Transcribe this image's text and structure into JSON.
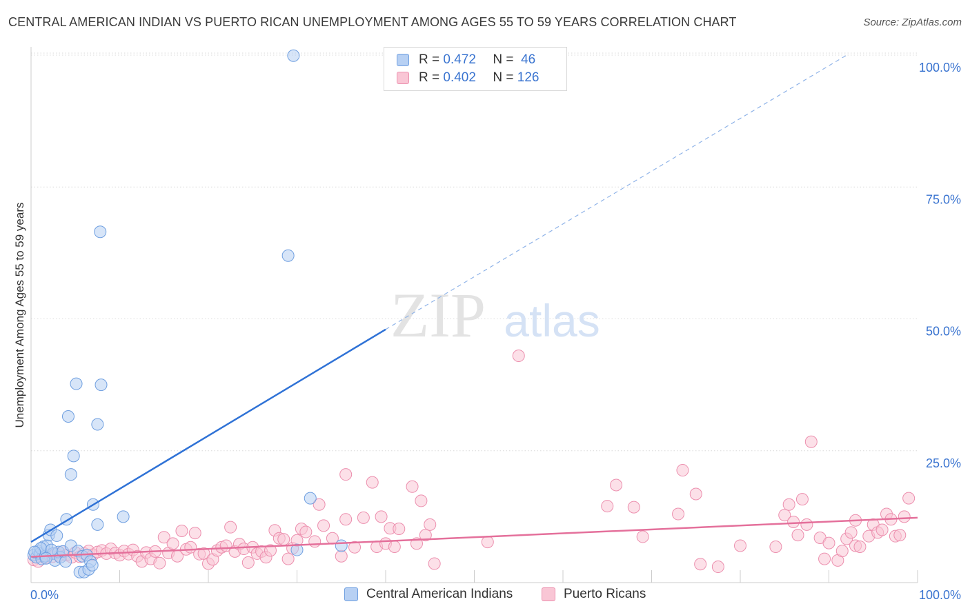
{
  "title": "CENTRAL AMERICAN INDIAN VS PUERTO RICAN UNEMPLOYMENT AMONG AGES 55 TO 59 YEARS CORRELATION CHART",
  "source": "Source: ZipAtlas.com",
  "watermark": {
    "zip": "ZIP",
    "atlas": "atlas"
  },
  "legend": {
    "r_label": "R =",
    "n_label": "N =",
    "series": [
      {
        "name": "Central American Indians",
        "r": "0.472",
        "n": "46",
        "color": "#6f9fe0",
        "fill": "#b7d0f3"
      },
      {
        "name": "Puerto Ricans",
        "r": "0.402",
        "n": "126",
        "color": "#ec8fae",
        "fill": "#f9c6d5"
      }
    ]
  },
  "chart_data": {
    "type": "scatter",
    "title": "CENTRAL AMERICAN INDIAN VS PUERTO RICAN UNEMPLOYMENT AMONG AGES 55 TO 59 YEARS CORRELATION CHART",
    "xlabel": "",
    "ylabel": "Unemployment Among Ages 55 to 59 years",
    "xlim": [
      0,
      100
    ],
    "ylim": [
      0,
      100
    ],
    "x_tick_labels": [
      "0.0%",
      "100.0%"
    ],
    "y_tick_labels": [
      "25.0%",
      "50.0%",
      "75.0%",
      "100.0%"
    ],
    "y_tick_values": [
      25,
      50,
      75,
      100
    ],
    "series": [
      {
        "name": "Central American Indians",
        "color": "#6f9fe0",
        "trend": {
          "x0": 0,
          "y0": 7.7,
          "x1": 40,
          "y1": 48,
          "dash_to_x": 92,
          "dash_to_y": 100
        },
        "points": [
          [
            0.3,
            5.2
          ],
          [
            0.6,
            4.8
          ],
          [
            0.8,
            6.0
          ],
          [
            1.0,
            5.5
          ],
          [
            1.2,
            4.5
          ],
          [
            1.4,
            6.8
          ],
          [
            1.6,
            5.0
          ],
          [
            1.8,
            7.0
          ],
          [
            2.0,
            9.0
          ],
          [
            2.2,
            10.0
          ],
          [
            2.5,
            5.5
          ],
          [
            2.7,
            4.2
          ],
          [
            2.9,
            8.9
          ],
          [
            3.1,
            5.8
          ],
          [
            3.3,
            4.8
          ],
          [
            3.6,
            5.9
          ],
          [
            3.9,
            4.0
          ],
          [
            4.0,
            12.0
          ],
          [
            4.2,
            31.5
          ],
          [
            4.5,
            7.0
          ],
          [
            4.5,
            20.5
          ],
          [
            4.8,
            24.0
          ],
          [
            5.1,
            37.7
          ],
          [
            5.3,
            6.0
          ],
          [
            5.5,
            2.0
          ],
          [
            5.8,
            5.0
          ],
          [
            6.0,
            2.0
          ],
          [
            6.3,
            5.2
          ],
          [
            6.5,
            2.5
          ],
          [
            6.7,
            4.0
          ],
          [
            6.9,
            3.3
          ],
          [
            7.0,
            14.8
          ],
          [
            7.5,
            11.0
          ],
          [
            7.5,
            30.0
          ],
          [
            7.8,
            66.5
          ],
          [
            7.9,
            37.5
          ],
          [
            10.4,
            12.5
          ],
          [
            29.0,
            62.0
          ],
          [
            29.6,
            99.9
          ],
          [
            30.0,
            6.2
          ],
          [
            31.5,
            16.0
          ],
          [
            35.0,
            7.0
          ],
          [
            1.1,
            6.5
          ],
          [
            2.3,
            6.2
          ],
          [
            0.4,
            5.8
          ],
          [
            1.7,
            4.6
          ]
        ]
      },
      {
        "name": "Puerto Ricans",
        "color": "#ec8fae",
        "trend": {
          "x0": 0,
          "y0": 4.9,
          "x1": 100,
          "y1": 12.3
        },
        "points": [
          [
            0.3,
            4.3
          ],
          [
            0.8,
            4.0
          ],
          [
            1.2,
            5.0
          ],
          [
            1.6,
            4.7
          ],
          [
            2.0,
            5.3
          ],
          [
            2.4,
            4.9
          ],
          [
            2.8,
            5.5
          ],
          [
            3.2,
            5.1
          ],
          [
            3.6,
            5.9
          ],
          [
            4.0,
            5.2
          ],
          [
            4.6,
            4.8
          ],
          [
            5.0,
            5.7
          ],
          [
            5.5,
            4.9
          ],
          [
            6.0,
            5.5
          ],
          [
            6.5,
            6.0
          ],
          [
            7.0,
            5.3
          ],
          [
            7.5,
            5.8
          ],
          [
            8.0,
            6.1
          ],
          [
            8.5,
            5.5
          ],
          [
            9.0,
            6.4
          ],
          [
            9.5,
            5.6
          ],
          [
            10.0,
            5.2
          ],
          [
            10.5,
            6.0
          ],
          [
            11.0,
            5.4
          ],
          [
            11.5,
            6.2
          ],
          [
            12.0,
            5.0
          ],
          [
            12.5,
            4.0
          ],
          [
            13.0,
            5.7
          ],
          [
            13.5,
            4.5
          ],
          [
            14.0,
            5.9
          ],
          [
            14.5,
            3.7
          ],
          [
            15.0,
            8.6
          ],
          [
            15.5,
            5.6
          ],
          [
            16.0,
            7.4
          ],
          [
            16.5,
            5.0
          ],
          [
            17.0,
            9.8
          ],
          [
            17.5,
            6.3
          ],
          [
            18.0,
            6.7
          ],
          [
            18.5,
            9.4
          ],
          [
            19.0,
            5.4
          ],
          [
            19.5,
            5.5
          ],
          [
            20.0,
            3.6
          ],
          [
            20.5,
            4.4
          ],
          [
            21.0,
            6.1
          ],
          [
            21.5,
            6.7
          ],
          [
            22.0,
            7.0
          ],
          [
            22.5,
            10.5
          ],
          [
            23.0,
            5.9
          ],
          [
            23.5,
            7.3
          ],
          [
            24.0,
            6.4
          ],
          [
            24.5,
            3.8
          ],
          [
            25.0,
            6.7
          ],
          [
            25.5,
            5.5
          ],
          [
            26.0,
            5.9
          ],
          [
            26.5,
            4.8
          ],
          [
            27.0,
            6.1
          ],
          [
            27.5,
            9.9
          ],
          [
            28.0,
            8.4
          ],
          [
            28.5,
            8.2
          ],
          [
            29.0,
            4.5
          ],
          [
            29.5,
            6.5
          ],
          [
            30.0,
            8.0
          ],
          [
            30.5,
            10.2
          ],
          [
            31.0,
            9.6
          ],
          [
            32.0,
            7.8
          ],
          [
            32.5,
            14.8
          ],
          [
            33.0,
            10.8
          ],
          [
            34.0,
            8.4
          ],
          [
            35.0,
            5.0
          ],
          [
            35.5,
            12.0
          ],
          [
            35.5,
            20.5
          ],
          [
            36.5,
            6.7
          ],
          [
            37.5,
            12.3
          ],
          [
            38.5,
            19.0
          ],
          [
            39.0,
            6.8
          ],
          [
            39.5,
            12.5
          ],
          [
            40.0,
            7.4
          ],
          [
            40.5,
            10.3
          ],
          [
            41.0,
            6.8
          ],
          [
            41.5,
            10.2
          ],
          [
            43.0,
            18.2
          ],
          [
            43.5,
            7.4
          ],
          [
            44.0,
            15.5
          ],
          [
            44.5,
            9.0
          ],
          [
            45.0,
            11.0
          ],
          [
            45.5,
            3.6
          ],
          [
            51.5,
            7.7
          ],
          [
            55.0,
            43.0
          ],
          [
            65.0,
            14.5
          ],
          [
            66.0,
            18.5
          ],
          [
            68.0,
            14.3
          ],
          [
            69.0,
            8.7
          ],
          [
            73.0,
            13.0
          ],
          [
            73.5,
            21.3
          ],
          [
            75.0,
            16.8
          ],
          [
            75.5,
            3.5
          ],
          [
            77.5,
            3.0
          ],
          [
            80.0,
            7.0
          ],
          [
            84.0,
            6.8
          ],
          [
            85.0,
            12.8
          ],
          [
            85.5,
            14.8
          ],
          [
            86.5,
            9.0
          ],
          [
            87.0,
            15.8
          ],
          [
            87.5,
            11.0
          ],
          [
            88.0,
            26.7
          ],
          [
            89.0,
            8.5
          ],
          [
            89.5,
            4.5
          ],
          [
            90.0,
            7.5
          ],
          [
            91.0,
            4.2
          ],
          [
            91.5,
            6.0
          ],
          [
            92.0,
            8.3
          ],
          [
            92.5,
            9.5
          ],
          [
            93.0,
            7.0
          ],
          [
            93.5,
            6.8
          ],
          [
            94.5,
            8.8
          ],
          [
            95.0,
            11.0
          ],
          [
            95.5,
            9.5
          ],
          [
            96.0,
            10.0
          ],
          [
            96.5,
            13.0
          ],
          [
            97.0,
            12.0
          ],
          [
            97.5,
            8.8
          ],
          [
            98.0,
            9.0
          ],
          [
            98.5,
            12.5
          ],
          [
            99.0,
            16.0
          ],
          [
            86.0,
            11.5
          ],
          [
            93.0,
            11.8
          ]
        ]
      }
    ]
  }
}
